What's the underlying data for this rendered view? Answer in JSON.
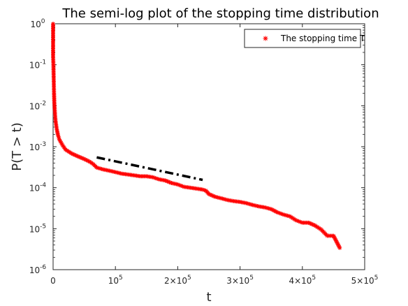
{
  "chart_data": {
    "type": "scatter",
    "title": "The semi-log plot of the stopping time distribution",
    "xlabel": "t",
    "ylabel": "P(T > t)",
    "xlim": [
      0,
      500000
    ],
    "ylim": [
      1e-06,
      1
    ],
    "yscale": "log",
    "grid": false,
    "legend_position": "top-right",
    "x_ticks": [
      {
        "value": 0,
        "base": "0",
        "exp": ""
      },
      {
        "value": 100000,
        "base": "10",
        "exp": "5"
      },
      {
        "value": 200000,
        "base": "2×10",
        "exp": "5"
      },
      {
        "value": 300000,
        "base": "3×10",
        "exp": "5"
      },
      {
        "value": 400000,
        "base": "4×10",
        "exp": "5"
      },
      {
        "value": 500000,
        "base": "5×10",
        "exp": "5"
      }
    ],
    "y_ticks": [
      {
        "value": 1,
        "base": "10",
        "exp": "0"
      },
      {
        "value": 0.1,
        "base": "10",
        "exp": "-1"
      },
      {
        "value": 0.01,
        "base": "10",
        "exp": "-2"
      },
      {
        "value": 0.001,
        "base": "10",
        "exp": "-3"
      },
      {
        "value": 0.0001,
        "base": "10",
        "exp": "-4"
      },
      {
        "value": 1e-05,
        "base": "10",
        "exp": "-5"
      },
      {
        "value": 1e-06,
        "base": "10",
        "exp": "-6"
      }
    ],
    "series": [
      {
        "name": "The stopping time T",
        "marker": "*",
        "color": "#ff0000",
        "x": [
          0,
          0,
          500,
          1000,
          1500,
          2000,
          3000,
          4000,
          6000,
          8000,
          10000,
          15000,
          20000,
          30000,
          40000,
          50000,
          55000,
          60000,
          65000,
          70000,
          80000,
          90000,
          100000,
          110000,
          120000,
          130000,
          140000,
          150000,
          160000,
          170000,
          180000,
          190000,
          200000,
          210000,
          220000,
          230000,
          240000,
          245000,
          250000,
          260000,
          270000,
          280000,
          290000,
          300000,
          310000,
          320000,
          330000,
          340000,
          350000,
          360000,
          370000,
          380000,
          390000,
          400000,
          410000,
          420000,
          430000,
          440000,
          450000,
          460000
        ],
        "y": [
          1.0,
          0.16,
          0.1,
          0.045,
          0.02,
          0.012,
          0.0065,
          0.0042,
          0.0026,
          0.0019,
          0.0015,
          0.0011,
          0.00085,
          0.00068,
          0.00058,
          0.0005,
          0.00046,
          0.00042,
          0.00037,
          0.00031,
          0.00028,
          0.00026,
          0.00024,
          0.00022,
          0.00021,
          0.0002,
          0.00019,
          0.00019,
          0.00018,
          0.00016,
          0.00015,
          0.00013,
          0.00012,
          0.000105,
          0.0001,
          9.5e-05,
          9e-05,
          8.5e-05,
          7e-05,
          6e-05,
          5.5e-05,
          5e-05,
          4.7e-05,
          4.5e-05,
          4.2e-05,
          3.8e-05,
          3.5e-05,
          3.3e-05,
          3e-05,
          2.5e-05,
          2.2e-05,
          2e-05,
          1.6e-05,
          1.4e-05,
          1.4e-05,
          1.2e-05,
          9.6e-06,
          6.7e-06,
          6.7e-06,
          3.4e-06
        ]
      }
    ],
    "reference_line": {
      "style": "dash-dot",
      "color": "#000000",
      "x": [
        70000,
        240000
      ],
      "y": [
        0.00055,
        0.000155
      ]
    }
  }
}
